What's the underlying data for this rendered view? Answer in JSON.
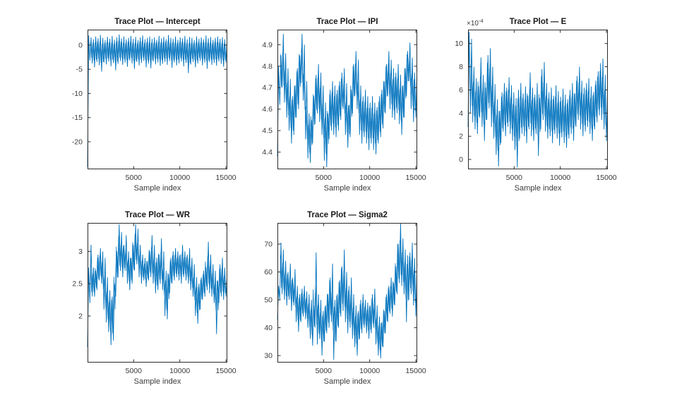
{
  "figure": {
    "background": "#ffffff",
    "trace_color": "#0072BD",
    "axis_color": "#2b2b2b",
    "tick_label_color": "#3a3a3a",
    "title_color": "#1a1a1a"
  },
  "chart_data": [
    {
      "type": "line",
      "title": "Trace Plot — Intercept",
      "series_name": "Intercept",
      "xlabel": "Sample index",
      "xlim": [
        0,
        15150
      ],
      "xticks": [
        5000,
        10000,
        15000
      ],
      "ylim": [
        -25.7,
        3.2
      ],
      "yticks": [
        0,
        -5,
        -10,
        -15,
        -20
      ],
      "grid": false,
      "envelope": {
        "x_range": [
          0,
          15000
        ],
        "lo": [
          -25.2,
          -3.2,
          -3.8,
          -4.6,
          -3.5,
          -4.2,
          -5.5,
          -3.6,
          -4.0,
          -3.4,
          -4.4,
          -3.7,
          -5.2,
          -3.9,
          -3.3,
          -4.1,
          -3.6,
          -4.5,
          -3.2,
          -3.8,
          -4.9,
          -3.5,
          -4.2,
          -3.7,
          -3.3,
          -4.6,
          -3.8,
          -4.8,
          -3.4,
          -4.0,
          -3.6,
          -4.3,
          -3.9,
          -3.5,
          -4.1,
          -3.3,
          -4.7,
          -3.6,
          -4.2,
          -3.8,
          -3.4,
          -4.4,
          -3.7,
          -5.8,
          -4.0,
          -3.5,
          -4.6,
          -3.8,
          -3.3,
          -4.2,
          -3.6,
          -4.9,
          -3.5,
          -4.1,
          -3.7,
          -4.3,
          -3.4,
          -3.9,
          -4.5,
          -3.6
        ],
        "hi": [
          2.0,
          1.6,
          1.2,
          1.8,
          1.4,
          2.1,
          1.5,
          1.0,
          1.7,
          1.3,
          1.9,
          1.1,
          1.6,
          2.2,
          1.4,
          1.8,
          1.2,
          1.5,
          1.9,
          1.3,
          1.7,
          1.0,
          1.6,
          2.0,
          1.2,
          1.5,
          1.8,
          1.3,
          1.6,
          1.1,
          1.9,
          1.4,
          1.7,
          1.2,
          2.1,
          1.5,
          1.3,
          1.8,
          1.1,
          1.6,
          1.4,
          1.9,
          1.2,
          1.7,
          1.5,
          1.0,
          1.8,
          1.3,
          1.6,
          1.2,
          2.0,
          1.4,
          1.7,
          1.1,
          1.5,
          1.8,
          1.3,
          1.6,
          1.2,
          1.4
        ]
      }
    },
    {
      "type": "line",
      "title": "Trace Plot — IPI",
      "series_name": "IPI",
      "xlabel": "Sample index",
      "xlim": [
        0,
        15150
      ],
      "xticks": [
        5000,
        10000,
        15000
      ],
      "ylim": [
        4.32,
        4.97
      ],
      "yticks": [
        4.9,
        4.8,
        4.7,
        4.6,
        4.5,
        4.4
      ],
      "grid": false,
      "envelope": {
        "x_range": [
          0,
          15000
        ],
        "lo": [
          4.38,
          4.62,
          4.7,
          4.63,
          4.56,
          4.5,
          4.44,
          4.48,
          4.56,
          4.6,
          4.72,
          4.64,
          4.46,
          4.37,
          4.35,
          4.44,
          4.53,
          4.58,
          4.54,
          4.48,
          4.36,
          4.33,
          4.46,
          4.5,
          4.48,
          4.47,
          4.5,
          4.55,
          4.6,
          4.48,
          4.42,
          4.47,
          4.58,
          4.66,
          4.6,
          4.48,
          4.44,
          4.47,
          4.44,
          4.41,
          4.44,
          4.41,
          4.39,
          4.44,
          4.47,
          4.51,
          4.58,
          4.66,
          4.6,
          4.56,
          4.55,
          4.58,
          4.53,
          4.48,
          4.56,
          4.66,
          4.73,
          4.6,
          4.54,
          4.56
        ],
        "hi": [
          4.8,
          4.85,
          4.95,
          4.86,
          4.79,
          4.74,
          4.66,
          4.71,
          4.79,
          4.85,
          4.95,
          4.9,
          4.73,
          4.58,
          4.55,
          4.66,
          4.76,
          4.81,
          4.77,
          4.71,
          4.63,
          4.58,
          4.69,
          4.73,
          4.71,
          4.69,
          4.73,
          4.77,
          4.79,
          4.72,
          4.62,
          4.69,
          4.81,
          4.87,
          4.83,
          4.71,
          4.66,
          4.69,
          4.66,
          4.63,
          4.66,
          4.63,
          4.61,
          4.66,
          4.69,
          4.73,
          4.81,
          4.87,
          4.83,
          4.79,
          4.77,
          4.81,
          4.76,
          4.71,
          4.79,
          4.87,
          4.91,
          4.84,
          4.77,
          4.79
        ]
      }
    },
    {
      "type": "line",
      "title": "Trace Plot — E",
      "series_name": "E",
      "xlabel": "Sample index",
      "y_multiplier": {
        "base": "×10",
        "exp": "-4"
      },
      "xlim": [
        0,
        15150
      ],
      "xticks": [
        5000,
        10000,
        15000
      ],
      "ylim": [
        -0.85,
        11.2
      ],
      "yticks": [
        10,
        8,
        6,
        4,
        2,
        0
      ],
      "grid": false,
      "envelope": {
        "x_range": [
          0,
          15000
        ],
        "lo": [
          2.8,
          4.0,
          3.2,
          2.6,
          2.2,
          3.6,
          2.8,
          1.6,
          3.4,
          4.4,
          2.8,
          1.8,
          0.4,
          -0.6,
          1.4,
          2.4,
          2.0,
          2.8,
          2.2,
          1.6,
          0.8,
          -0.7,
          1.8,
          2.2,
          2.0,
          1.4,
          2.6,
          2.0,
          1.6,
          2.2,
          0.3,
          2.6,
          3.4,
          2.4,
          1.8,
          2.0,
          1.4,
          2.2,
          1.8,
          1.2,
          1.9,
          1.4,
          1.0,
          1.8,
          2.2,
          1.6,
          2.8,
          3.4,
          2.6,
          2.0,
          2.4,
          2.8,
          2.2,
          1.6,
          2.6,
          3.2,
          3.8,
          3.4,
          2.6,
          1.6
        ],
        "hi": [
          11.0,
          10.4,
          8.0,
          7.0,
          6.3,
          8.8,
          7.3,
          6.2,
          9.0,
          9.6,
          8.0,
          6.5,
          5.2,
          4.2,
          5.8,
          6.6,
          6.2,
          7.1,
          6.4,
          5.8,
          5.3,
          6.0,
          6.6,
          5.7,
          6.3,
          5.5,
          7.5,
          6.2,
          5.6,
          6.6,
          5.3,
          7.8,
          8.4,
          6.6,
          5.8,
          6.2,
          5.5,
          6.4,
          5.9,
          5.4,
          6.1,
          5.6,
          5.2,
          6.0,
          6.6,
          5.7,
          7.2,
          8.0,
          6.8,
          6.2,
          6.6,
          7.0,
          6.3,
          5.8,
          6.8,
          7.6,
          8.3,
          8.7,
          7.3,
          6.3
        ]
      }
    },
    {
      "type": "line",
      "title": "Trace Plot — WR",
      "series_name": "WR",
      "xlabel": "Sample index",
      "xlim": [
        0,
        15150
      ],
      "xticks": [
        5000,
        10000,
        15000
      ],
      "ylim": [
        1.28,
        3.44
      ],
      "yticks": [
        3,
        2.5,
        2
      ],
      "grid": false,
      "envelope": {
        "x_range": [
          0,
          15000
        ],
        "lo": [
          1.52,
          2.2,
          2.3,
          2.3,
          2.4,
          2.55,
          2.5,
          2.1,
          1.9,
          1.75,
          1.55,
          1.62,
          2.3,
          2.6,
          2.7,
          2.6,
          2.7,
          2.5,
          2.4,
          2.5,
          2.7,
          2.8,
          2.6,
          2.5,
          2.55,
          2.45,
          2.55,
          2.6,
          2.5,
          2.35,
          2.4,
          2.5,
          2.4,
          2.0,
          1.95,
          2.35,
          2.5,
          2.55,
          2.6,
          2.55,
          2.5,
          2.6,
          2.55,
          2.5,
          2.4,
          2.3,
          2.0,
          1.88,
          2.1,
          2.25,
          2.3,
          2.4,
          2.35,
          2.3,
          2.2,
          1.72,
          2.2,
          2.3,
          2.25,
          2.3
        ],
        "hi": [
          2.75,
          3.1,
          2.75,
          2.7,
          2.95,
          3.05,
          3.0,
          2.9,
          2.6,
          2.4,
          2.3,
          2.5,
          3.0,
          3.42,
          3.3,
          3.1,
          3.25,
          3.0,
          2.9,
          3.1,
          3.42,
          3.35,
          3.1,
          2.95,
          2.9,
          2.85,
          3.0,
          3.25,
          3.1,
          2.9,
          2.95,
          3.2,
          3.0,
          2.7,
          2.65,
          2.9,
          3.0,
          3.05,
          3.0,
          2.95,
          3.1,
          3.0,
          2.95,
          3.05,
          2.9,
          2.8,
          2.6,
          2.5,
          2.6,
          2.7,
          2.75,
          3.15,
          2.95,
          2.8,
          2.7,
          2.55,
          2.8,
          2.9,
          2.75,
          2.65
        ]
      }
    },
    {
      "type": "line",
      "title": "Trace Plot — Sigma2",
      "series_name": "Sigma2",
      "xlabel": "Sample index",
      "xlim": [
        0,
        15150
      ],
      "xticks": [
        5000,
        10000,
        15000
      ],
      "ylim": [
        27.5,
        77.6
      ],
      "yticks": [
        70,
        60,
        50,
        40,
        30
      ],
      "grid": false,
      "envelope": {
        "x_range": [
          0,
          15000
        ],
        "lo": [
          43,
          50,
          52,
          50,
          48,
          50,
          46,
          48,
          42,
          38.5,
          42,
          44,
          43,
          40,
          36,
          33.5,
          40,
          34,
          36,
          30,
          35,
          38,
          40,
          42,
          28.5,
          35,
          40,
          44,
          46,
          42,
          38,
          40,
          36,
          33,
          30,
          36,
          38,
          40,
          38,
          36,
          38,
          40,
          34,
          30,
          29,
          33,
          38,
          42,
          45,
          44,
          48,
          52,
          56,
          55,
          52,
          42,
          50,
          52,
          48,
          44
        ],
        "hi": [
          55,
          70.5,
          68,
          64,
          60,
          63,
          58,
          61,
          55,
          52,
          54,
          55,
          53,
          52,
          50,
          48,
          67,
          52,
          50,
          46,
          48,
          52,
          58,
          63,
          50,
          52,
          57,
          62,
          68,
          60,
          55,
          58,
          52,
          48,
          46,
          50,
          52,
          50,
          49,
          48,
          52,
          54,
          48,
          44,
          42,
          46,
          52,
          55,
          58,
          56,
          62,
          70,
          77.5,
          72,
          68,
          66,
          67,
          70.5,
          65,
          63
        ]
      }
    }
  ]
}
